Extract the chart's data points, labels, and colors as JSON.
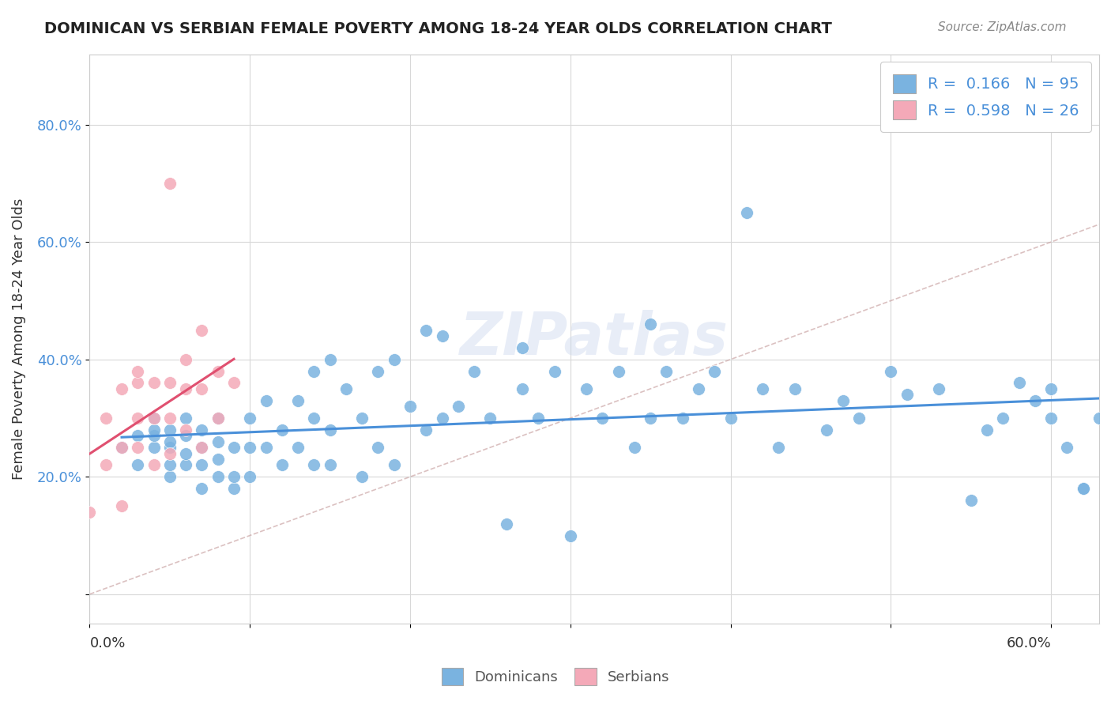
{
  "title": "DOMINICAN VS SERBIAN FEMALE POVERTY AMONG 18-24 YEAR OLDS CORRELATION CHART",
  "source": "Source: ZipAtlas.com",
  "ylabel": "Female Poverty Among 18-24 Year Olds",
  "xlim": [
    0.0,
    0.63
  ],
  "ylim": [
    -0.05,
    0.92
  ],
  "legend1_label": "R =  0.166   N = 95",
  "legend2_label": "R =  0.598   N = 26",
  "dominican_color": "#7ab3e0",
  "serbian_color": "#f4a9b8",
  "trend_dominican_color": "#4a90d9",
  "trend_serbian_color": "#e05070",
  "diagonal_color": "#c8a0a0",
  "background_color": "#ffffff",
  "dominican_x": [
    0.02,
    0.03,
    0.03,
    0.04,
    0.04,
    0.04,
    0.04,
    0.05,
    0.05,
    0.05,
    0.05,
    0.05,
    0.06,
    0.06,
    0.06,
    0.06,
    0.07,
    0.07,
    0.07,
    0.07,
    0.08,
    0.08,
    0.08,
    0.08,
    0.09,
    0.09,
    0.09,
    0.1,
    0.1,
    0.1,
    0.11,
    0.11,
    0.12,
    0.12,
    0.13,
    0.13,
    0.14,
    0.14,
    0.14,
    0.15,
    0.15,
    0.15,
    0.16,
    0.17,
    0.17,
    0.18,
    0.18,
    0.19,
    0.19,
    0.2,
    0.21,
    0.21,
    0.22,
    0.22,
    0.23,
    0.24,
    0.25,
    0.26,
    0.27,
    0.27,
    0.28,
    0.29,
    0.3,
    0.31,
    0.32,
    0.33,
    0.34,
    0.35,
    0.35,
    0.36,
    0.37,
    0.38,
    0.39,
    0.4,
    0.41,
    0.42,
    0.43,
    0.44,
    0.46,
    0.47,
    0.48,
    0.5,
    0.51,
    0.53,
    0.55,
    0.56,
    0.57,
    0.58,
    0.59,
    0.6,
    0.6,
    0.61,
    0.62,
    0.62,
    0.63
  ],
  "dominican_y": [
    0.25,
    0.22,
    0.27,
    0.25,
    0.27,
    0.28,
    0.3,
    0.2,
    0.22,
    0.25,
    0.26,
    0.28,
    0.22,
    0.24,
    0.27,
    0.3,
    0.18,
    0.22,
    0.25,
    0.28,
    0.2,
    0.23,
    0.26,
    0.3,
    0.18,
    0.2,
    0.25,
    0.2,
    0.25,
    0.3,
    0.25,
    0.33,
    0.22,
    0.28,
    0.25,
    0.33,
    0.22,
    0.3,
    0.38,
    0.22,
    0.28,
    0.4,
    0.35,
    0.2,
    0.3,
    0.25,
    0.38,
    0.22,
    0.4,
    0.32,
    0.28,
    0.45,
    0.3,
    0.44,
    0.32,
    0.38,
    0.3,
    0.12,
    0.35,
    0.42,
    0.3,
    0.38,
    0.1,
    0.35,
    0.3,
    0.38,
    0.25,
    0.3,
    0.46,
    0.38,
    0.3,
    0.35,
    0.38,
    0.3,
    0.65,
    0.35,
    0.25,
    0.35,
    0.28,
    0.33,
    0.3,
    0.38,
    0.34,
    0.35,
    0.16,
    0.28,
    0.3,
    0.36,
    0.33,
    0.3,
    0.35,
    0.25,
    0.18,
    0.18,
    0.3
  ],
  "serbian_x": [
    0.0,
    0.01,
    0.01,
    0.02,
    0.02,
    0.02,
    0.03,
    0.03,
    0.03,
    0.03,
    0.04,
    0.04,
    0.04,
    0.05,
    0.05,
    0.05,
    0.05,
    0.06,
    0.06,
    0.06,
    0.07,
    0.07,
    0.07,
    0.08,
    0.08,
    0.09
  ],
  "serbian_y": [
    0.14,
    0.22,
    0.3,
    0.15,
    0.25,
    0.35,
    0.25,
    0.3,
    0.36,
    0.38,
    0.22,
    0.3,
    0.36,
    0.24,
    0.3,
    0.36,
    0.7,
    0.28,
    0.35,
    0.4,
    0.25,
    0.35,
    0.45,
    0.3,
    0.38,
    0.36
  ]
}
